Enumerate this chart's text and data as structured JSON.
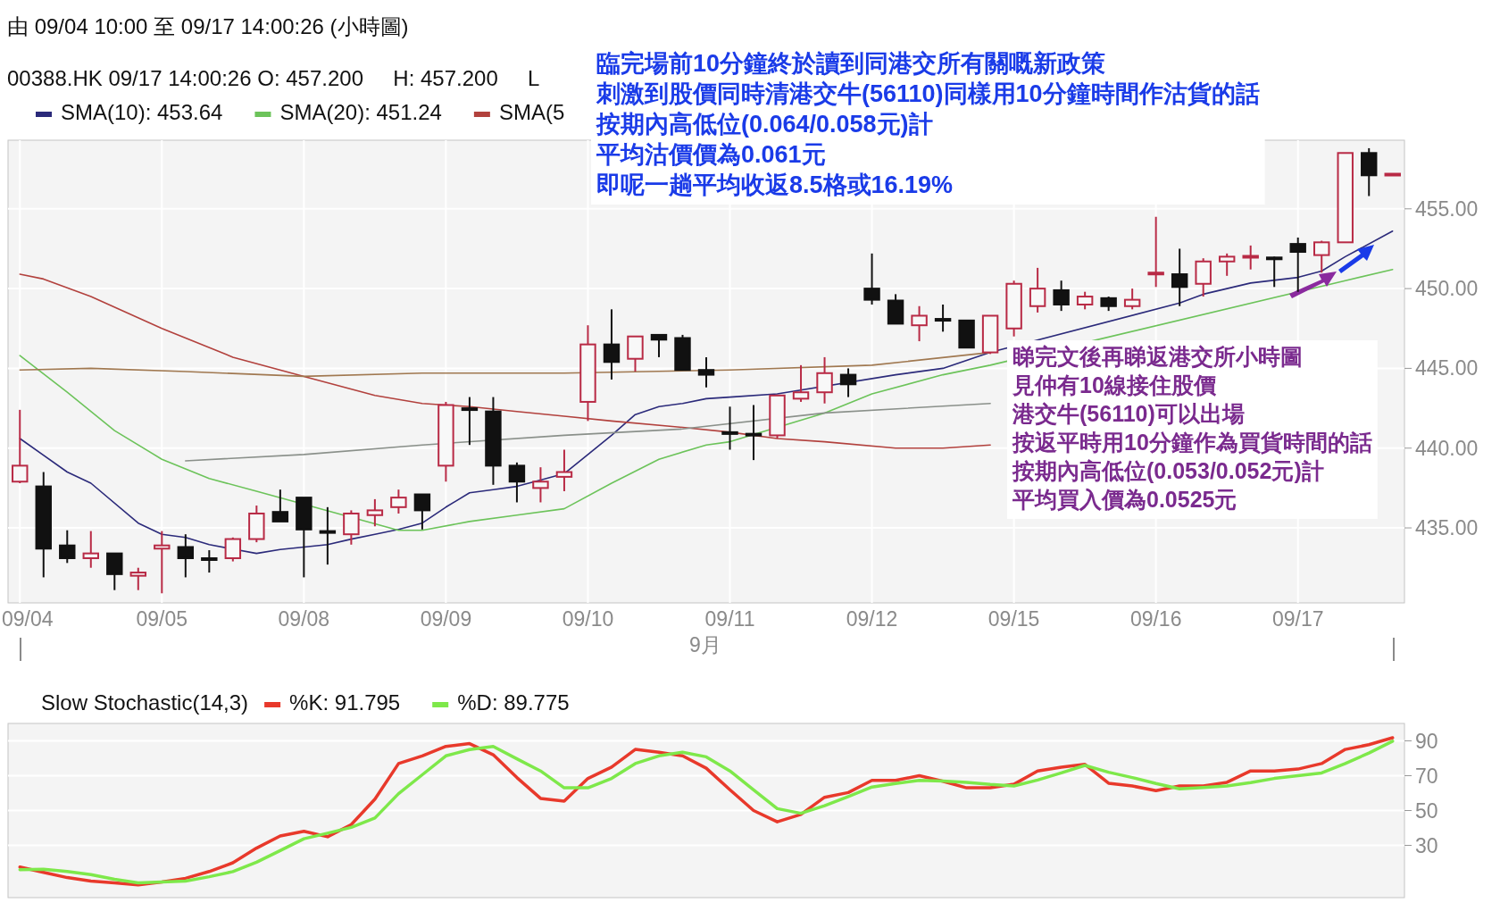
{
  "chart_data": [
    {
      "type": "candlestick",
      "title": "由  09/04 10:00 至  09/17 14:00:26 (小時圖)",
      "subtitle": "00388.HK 09/17 14:00:26 O: 457.200     H: 457.200     L",
      "categories": [
        "09/04",
        null,
        null,
        null,
        null,
        null,
        "09/05",
        null,
        null,
        null,
        null,
        null,
        "09/08",
        null,
        null,
        null,
        null,
        null,
        "09/09",
        null,
        null,
        null,
        null,
        null,
        "09/10",
        null,
        null,
        null,
        null,
        null,
        "09/11",
        null,
        null,
        null,
        null,
        null,
        "09/12",
        null,
        null,
        null,
        null,
        null,
        "09/15",
        null,
        null,
        null,
        null,
        null,
        "09/16",
        null,
        null,
        null,
        null,
        null,
        "09/17",
        null,
        null,
        null,
        null
      ],
      "ohlc": [
        [
          437.9,
          442.4,
          437.8,
          438.9
        ],
        [
          437.6,
          438.5,
          431.9,
          433.7
        ],
        [
          433.9,
          434.85,
          432.8,
          433.1
        ],
        [
          433.1,
          434.8,
          432.5,
          433.4
        ],
        [
          433.4,
          433.4,
          431.1,
          432.1
        ],
        [
          432.0,
          432.5,
          431.1,
          432.2
        ],
        [
          433.7,
          434.8,
          430.9,
          433.9
        ],
        [
          433.8,
          434.6,
          431.9,
          433.1
        ],
        [
          433.1,
          433.6,
          432.2,
          433.0
        ],
        [
          433.1,
          434.4,
          432.9,
          434.3
        ],
        [
          434.3,
          436.4,
          434.1,
          435.9
        ],
        [
          436.0,
          437.4,
          435.4,
          435.4
        ],
        [
          436.9,
          436.9,
          431.9,
          434.9
        ],
        [
          434.8,
          436.3,
          432.7,
          434.7
        ],
        [
          434.6,
          436.1,
          433.95,
          435.9
        ],
        [
          435.8,
          436.8,
          435.1,
          436.1
        ],
        [
          436.3,
          437.4,
          435.9,
          436.9
        ],
        [
          437.1,
          437.1,
          434.9,
          436.1
        ],
        [
          438.9,
          442.9,
          437.9,
          442.7
        ],
        [
          442.5,
          443.2,
          440.2,
          442.4
        ],
        [
          442.3,
          443.2,
          437.7,
          438.9
        ],
        [
          438.9,
          439.1,
          436.6,
          437.9
        ],
        [
          437.5,
          438.8,
          436.6,
          437.9
        ],
        [
          438.2,
          439.9,
          437.3,
          438.5
        ],
        [
          442.9,
          447.7,
          441.7,
          446.5
        ],
        [
          446.5,
          448.7,
          444.3,
          445.4
        ],
        [
          445.6,
          447.0,
          444.8,
          447.0
        ],
        [
          447.1,
          447.1,
          445.7,
          446.8
        ],
        [
          446.9,
          447.1,
          444.9,
          444.9
        ],
        [
          444.9,
          445.7,
          443.8,
          444.6
        ],
        [
          441.0,
          442.6,
          439.9,
          440.9
        ],
        [
          440.9,
          442.7,
          439.25,
          440.8
        ],
        [
          440.8,
          443.3,
          440.6,
          443.3
        ],
        [
          443.1,
          445.2,
          442.9,
          443.5
        ],
        [
          443.5,
          445.7,
          442.8,
          444.7
        ],
        [
          444.6,
          445.0,
          443.2,
          444.0
        ],
        [
          450.0,
          452.2,
          449.0,
          449.3
        ],
        [
          449.25,
          449.65,
          447.8,
          447.8
        ],
        [
          447.7,
          448.9,
          446.7,
          448.3
        ],
        [
          448.1,
          449.0,
          447.3,
          448.0
        ],
        [
          448.0,
          448.0,
          446.3,
          446.3
        ],
        [
          446.0,
          448.3,
          445.9,
          448.3
        ],
        [
          447.5,
          450.5,
          447.0,
          450.3
        ],
        [
          448.9,
          451.3,
          448.5,
          450.0
        ],
        [
          449.9,
          450.5,
          448.6,
          449.0
        ],
        [
          449.0,
          449.8,
          448.7,
          449.5
        ],
        [
          449.4,
          449.5,
          448.6,
          448.9
        ],
        [
          448.9,
          450.0,
          448.7,
          449.3
        ],
        [
          450.9,
          454.5,
          450.1,
          451.0
        ],
        [
          450.9,
          452.5,
          448.9,
          450.1
        ],
        [
          450.3,
          451.9,
          449.5,
          451.7
        ],
        [
          451.7,
          452.2,
          450.8,
          452.0
        ],
        [
          451.95,
          452.7,
          451.2,
          452.05
        ],
        [
          451.95,
          452.0,
          450.1,
          451.85
        ],
        [
          452.8,
          453.2,
          449.8,
          452.3
        ],
        [
          452.1,
          453.0,
          451.0,
          452.9
        ],
        [
          452.9,
          458.5,
          452.9,
          458.5
        ],
        [
          458.5,
          458.8,
          455.8,
          457.1
        ],
        [
          457.1,
          457.2,
          457.1,
          457.2
        ]
      ],
      "series": [
        {
          "type": "line",
          "name": "SMA(10): 453.64",
          "color": "#2b2a7a",
          "values": [
            440.6,
            null,
            438.5,
            437.8,
            null,
            435.3,
            434.6,
            434.4,
            433.95,
            null,
            433.4,
            433.65,
            433.8,
            433.95,
            434.3,
            434.6,
            434.9,
            435.3,
            436.3,
            437.2,
            437.4,
            437.6,
            438.0,
            438.4,
            439.6,
            440.8,
            442.1,
            442.6,
            442.8,
            443.1,
            443.2,
            null,
            443.4,
            null,
            null,
            null,
            null,
            444.6,
            null,
            445.0,
            null,
            446.0,
            null,
            null,
            null,
            null,
            null,
            null,
            null,
            449.1,
            449.65,
            null,
            450.35,
            null,
            450.7,
            451.1,
            452.0,
            null,
            453.6
          ]
        },
        {
          "type": "line",
          "name": "SMA(20): 451.24",
          "color": "#6cc35a",
          "values": [
            445.8,
            null,
            443.5,
            null,
            441.1,
            null,
            439.3,
            null,
            438.1,
            null,
            437.3,
            null,
            null,
            null,
            null,
            null,
            434.85,
            434.85,
            null,
            435.4,
            null,
            435.8,
            null,
            436.2,
            null,
            437.8,
            null,
            439.3,
            null,
            440.2,
            440.4,
            null,
            null,
            null,
            442.2,
            null,
            443.4,
            null,
            null,
            444.6,
            null,
            445.2,
            null,
            null,
            null,
            null,
            null,
            null,
            null,
            null,
            null,
            null,
            null,
            null,
            null,
            null,
            450.5,
            null,
            451.2
          ]
        },
        {
          "type": "line",
          "name": "SMA(5",
          "color": "#b2413d",
          "values": [
            450.9,
            450.6,
            null,
            449.5,
            null,
            null,
            447.5,
            null,
            null,
            445.7,
            null,
            null,
            444.5,
            null,
            null,
            443.3,
            null,
            442.8,
            null,
            442.6,
            null,
            442.3,
            null,
            442.0,
            null,
            441.7,
            null,
            null,
            441.3,
            null,
            441.0,
            null,
            440.6,
            null,
            440.4,
            null,
            null,
            440.0,
            null,
            440.0,
            null,
            440.2,
            null,
            null,
            null,
            null,
            null,
            null,
            null,
            null,
            null,
            null,
            null,
            null,
            null,
            null,
            null,
            null,
            null
          ]
        },
        {
          "type": "line",
          "color": "#a07850",
          "values": [
            444.9,
            null,
            null,
            445.0,
            null,
            null,
            null,
            444.8,
            null,
            null,
            null,
            null,
            444.5,
            null,
            null,
            null,
            null,
            444.7,
            null,
            null,
            null,
            null,
            null,
            444.7,
            null,
            null,
            null,
            null,
            null,
            null,
            444.9,
            null,
            null,
            null,
            null,
            null,
            445.2,
            null,
            null,
            null,
            null,
            446.0,
            null,
            null,
            null,
            null,
            null,
            null,
            null,
            null,
            null,
            null,
            null,
            null,
            null,
            null,
            null,
            null,
            null
          ]
        },
        {
          "type": "line",
          "color": "#8a908a",
          "values": [
            null,
            null,
            null,
            null,
            null,
            null,
            null,
            439.2,
            null,
            null,
            null,
            null,
            439.6,
            null,
            null,
            null,
            null,
            440.2,
            null,
            null,
            null,
            null,
            null,
            440.8,
            null,
            null,
            null,
            null,
            441.2,
            null,
            null,
            null,
            null,
            null,
            442.2,
            null,
            null,
            null,
            null,
            null,
            null,
            442.8,
            null,
            null,
            null,
            null,
            null,
            null,
            null,
            null,
            null,
            null,
            null,
            null,
            null,
            null,
            null,
            null,
            null
          ]
        }
      ],
      "ylim": [
        430.3,
        459.3
      ],
      "yticks": [
        {
          "value": 435,
          "label": "435.00"
        },
        {
          "value": 440,
          "label": "440.00"
        },
        {
          "value": 445,
          "label": "445.00"
        },
        {
          "value": 450,
          "label": "450.00"
        },
        {
          "value": 455,
          "label": "455.00"
        }
      ],
      "grid": true,
      "legend": "top left",
      "annotations": [
        "臨完場前10分鐘終於讀到同港交所有關嘅新政策",
        "刺激到股價同時清港交牛(56110)同樣用10分鐘時間作沽貨的話",
        "按期內高低位(0.064/0.058元)計",
        "平均沽價價為0.061元",
        "即呢一趟平均收返8.5格或16.19%",
        "睇完文後再睇返港交所小時圖",
        "見仲有10線接住股價",
        "港交牛(56110)可以出場",
        "按返平時用10分鐘作為買貨時間的話",
        "按期內高低位(0.053/0.052元)計",
        "平均買入價為0.0525元",
        "9月"
      ]
    },
    {
      "type": "line",
      "title": "Slow Stochastic(14,3)",
      "categories": [
        null,
        null,
        null,
        null,
        null,
        null,
        null,
        null,
        null,
        null,
        null,
        null,
        null,
        null,
        null,
        null,
        null,
        null,
        null,
        null,
        null,
        null,
        null,
        null,
        null,
        null,
        null,
        null,
        null,
        null,
        null,
        null,
        null,
        null,
        null,
        null,
        null,
        null,
        null,
        null,
        null,
        null,
        null,
        null,
        null,
        null,
        null,
        null,
        null,
        null,
        null,
        null,
        null,
        null,
        null,
        null,
        null,
        null,
        null
      ],
      "series": [
        {
          "name": "%K: 91.795",
          "color": "#e8392b",
          "values": [
            17.6,
            14.5,
            11.5,
            9.5,
            8.4,
            7.3,
            9.0,
            11.1,
            15.0,
            20.0,
            28.4,
            35.4,
            38.1,
            34.9,
            41.9,
            56.5,
            77.0,
            81.4,
            86.8,
            88.4,
            82.0,
            68.9,
            57.0,
            55.4,
            68.4,
            74.9,
            85.1,
            83.5,
            81.4,
            74.3,
            61.9,
            50.0,
            43.5,
            47.8,
            57.6,
            60.3,
            67.3,
            67.3,
            70.0,
            66.8,
            63.0,
            63.0,
            65.1,
            72.7,
            74.9,
            76.5,
            65.7,
            64.1,
            61.4,
            64.1,
            64.1,
            66.2,
            72.7,
            72.7,
            73.8,
            77.0,
            85.1,
            87.8,
            91.8
          ]
        },
        {
          "name": "%D: 89.775",
          "color": "#7ee84a",
          "values": [
            16.0,
            16.3,
            15.0,
            13.2,
            10.5,
            8.4,
            9.0,
            9.5,
            12.0,
            14.9,
            20.3,
            27.0,
            33.8,
            37.0,
            40.3,
            45.7,
            59.7,
            70.5,
            81.4,
            85.0,
            86.8,
            79.7,
            72.7,
            63.0,
            63.0,
            68.4,
            77.0,
            81.4,
            83.5,
            80.8,
            72.7,
            61.9,
            51.1,
            48.4,
            52.7,
            58.0,
            63.5,
            65.5,
            67.3,
            67.0,
            66.2,
            65.0,
            64.1,
            67.5,
            71.6,
            75.9,
            72.0,
            68.9,
            65.5,
            62.4,
            63.2,
            64.1,
            66.0,
            68.4,
            70.0,
            71.6,
            77.0,
            83.0,
            89.8
          ]
        }
      ],
      "ylim": [
        0,
        100
      ],
      "yticks": [
        30,
        50,
        70,
        90
      ],
      "grid": true,
      "legend": "top left",
      "tick_labels": "y"
    }
  ]
}
